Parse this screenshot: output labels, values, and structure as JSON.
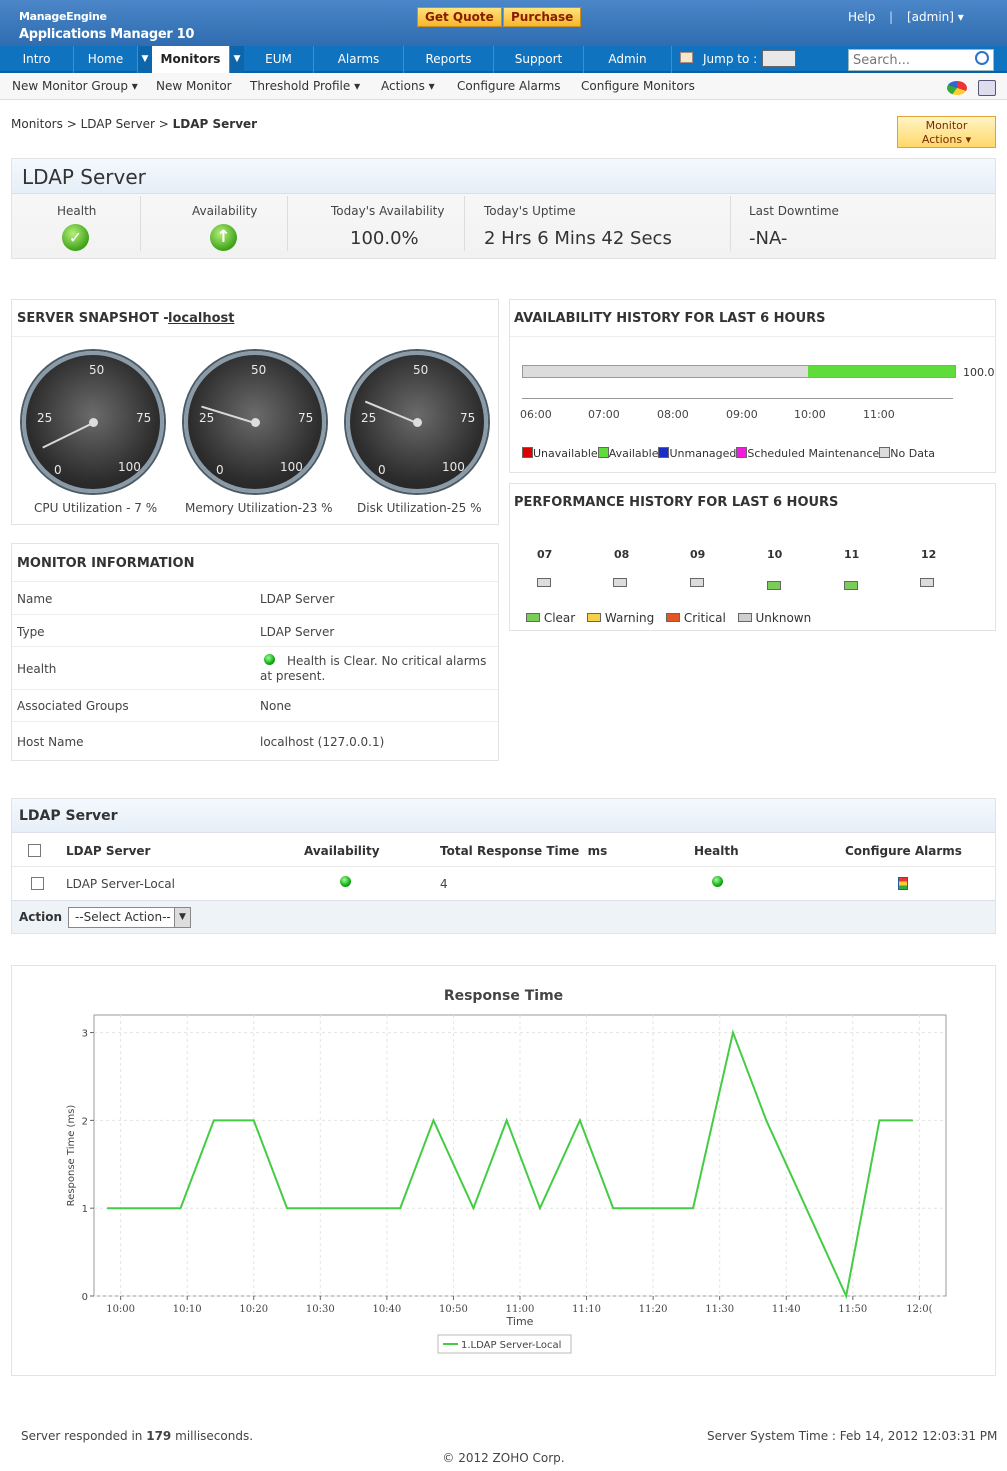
{
  "header": {
    "logo_top": "ManageEngine",
    "logo_bottom": "Applications Manager 10",
    "get_quote": "Get Quote",
    "purchase": "Purchase",
    "help": "Help",
    "separator": "|",
    "user": "[admin] ▾"
  },
  "nav": {
    "items": [
      "Intro",
      "Home",
      "Monitors",
      "EUM",
      "Alarms",
      "Reports",
      "Support",
      "Admin"
    ],
    "jump_to": "Jump to :",
    "search_placeholder": "Search..."
  },
  "subnav": [
    "New Monitor Group ▾",
    "New Monitor",
    "Threshold Profile ▾",
    "Actions ▾",
    "Configure Alarms",
    "Configure Monitors"
  ],
  "breadcrumb": {
    "a": "Monitors",
    "sep": ">",
    "b": "LDAP Server",
    "c": "LDAP Server"
  },
  "monitor_actions": {
    "line1": "Monitor",
    "line2": "Actions ▾"
  },
  "summary": {
    "title": "LDAP Server",
    "health_label": "Health",
    "availability_label": "Availability",
    "today_avail_label": "Today's Availability",
    "today_avail_value": "100.0%",
    "uptime_label": "Today's Uptime",
    "uptime_value": "2 Hrs 6 Mins 42 Secs",
    "downtime_label": "Last Downtime",
    "downtime_value": "-NA-"
  },
  "snapshot": {
    "title": "SERVER SNAPSHOT -",
    "host_link": "localhost",
    "gauges": [
      {
        "caption": "CPU Utilization - 7 %",
        "value": 7
      },
      {
        "caption": "Memory Utilization-23 %",
        "value": 23
      },
      {
        "caption": "Disk Utilization-25 %",
        "value": 25
      }
    ],
    "ticks": [
      "0",
      "25",
      "50",
      "75",
      "100"
    ]
  },
  "availability_history": {
    "title": "AVAILABILITY HISTORY FOR LAST 6 HOURS",
    "value_label": "100.0",
    "available_fraction": 0.34,
    "times": [
      "06:00",
      "07:00",
      "08:00",
      "09:00",
      "10:00",
      "11:00"
    ],
    "legend": [
      {
        "label": "Unavailable",
        "color": "#e00000"
      },
      {
        "label": "Available",
        "color": "#5ddc3a"
      },
      {
        "label": "Unmanaged",
        "color": "#1a2fc8"
      },
      {
        "label": "Scheduled Maintenance",
        "color": "#f21ce0"
      },
      {
        "label": "No Data",
        "color": "#dcdcdc"
      }
    ]
  },
  "performance_history": {
    "title": "PERFORMANCE HISTORY FOR LAST 6 HOURS",
    "hours": [
      "07",
      "08",
      "09",
      "10",
      "11",
      "12"
    ],
    "status_colors": [
      "#dcdcdc",
      "#dcdcdc",
      "#dcdcdc",
      "#7ccc5a",
      "#7ccc5a",
      "#dcdcdc"
    ],
    "legend": [
      {
        "label": "Clear",
        "color": "#7ccc5a"
      },
      {
        "label": "Warning",
        "color": "#f5d14a"
      },
      {
        "label": "Critical",
        "color": "#e35522"
      },
      {
        "label": "Unknown",
        "color": "#cfcfcf"
      }
    ]
  },
  "monitor_info": {
    "title": "MONITOR INFORMATION",
    "rows": [
      {
        "k": "Name",
        "v": "LDAP Server"
      },
      {
        "k": "Type",
        "v": "LDAP Server"
      },
      {
        "k": "Health",
        "v": "Health is Clear. No critical alarms",
        "v2": "at present."
      },
      {
        "k": "Associated Groups",
        "v": "None"
      },
      {
        "k": "Host Name",
        "v": "localhost (127.0.0.1)"
      }
    ]
  },
  "ldap_table": {
    "title": "LDAP Server",
    "headers": [
      "LDAP Server",
      "Availability",
      "Total Response Time  ms",
      "Health",
      "Configure Alarms"
    ],
    "rows": [
      {
        "name": "LDAP Server-Local",
        "response": "4"
      }
    ],
    "action_label": "Action",
    "select_value": "--Select Action--"
  },
  "chart_data": {
    "type": "line",
    "title": "Response Time",
    "xlabel": "Time",
    "ylabel": "Response Time (ms)",
    "ylim": [
      0,
      3.2
    ],
    "yticks": [
      0,
      1,
      2,
      3
    ],
    "xticks": [
      "10:00",
      "10:10",
      "10:20",
      "10:30",
      "10:40",
      "10:50",
      "11:00",
      "11:10",
      "11:20",
      "11:30",
      "11:40",
      "11:50",
      "12:0("
    ],
    "xlim_minutes": [
      596,
      724
    ],
    "series": [
      {
        "name": "1.LDAP Server-Local",
        "color": "#44cc44",
        "x": [
          "09:58",
          "10:03",
          "10:09",
          "10:14",
          "10:20",
          "10:25",
          "10:31",
          "10:36",
          "10:42",
          "10:47",
          "10:53",
          "10:58",
          "11:03",
          "11:09",
          "11:14",
          "11:20",
          "11:26",
          "11:32",
          "11:37",
          "11:43",
          "11:49",
          "11:54",
          "11:59"
        ],
        "values": [
          1,
          1,
          1,
          2,
          2,
          1,
          1,
          1,
          1,
          2,
          1,
          2,
          1,
          2,
          1,
          1,
          1,
          3,
          2,
          1,
          0,
          2,
          2
        ]
      }
    ],
    "grid": true,
    "legend": "bottom"
  },
  "footer": {
    "responded_prefix": "Server responded in",
    "responded_ms": "179",
    "responded_suffix": "milliseconds.",
    "system_time": "Server System Time : Feb 14, 2012 12:03:31 PM",
    "copyright": "© 2012 ZOHO Corp."
  }
}
